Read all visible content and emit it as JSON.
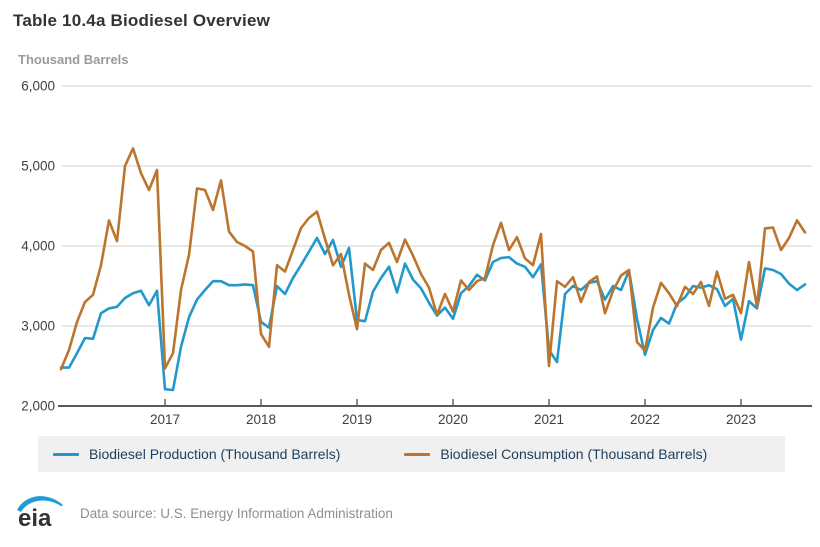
{
  "header": {
    "title": "Table 10.4a Biodiesel Overview",
    "unit_label": "Thousand Barrels"
  },
  "chart_data": {
    "type": "line",
    "title": "Table 10.4a Biodiesel Overview",
    "ylabel": "Thousand Barrels",
    "xlabel": "",
    "frequency": "monthly",
    "x_start": "2015-12",
    "x_end": "2023-09",
    "ylim": [
      2000,
      6000
    ],
    "ytick_step": 1000,
    "grid": "horizontal",
    "legend_position": "bottom",
    "year_ticks": [
      "2017",
      "2018",
      "2019",
      "2020",
      "2021",
      "2022",
      "2023"
    ],
    "series": [
      {
        "name": "Biodiesel Production (Thousand Barrels)",
        "color": "#2398cb",
        "values": [
          2480,
          2480,
          2660,
          2850,
          2840,
          3160,
          3220,
          3240,
          3350,
          3410,
          3440,
          3260,
          3440,
          2210,
          2200,
          2740,
          3110,
          3330,
          3450,
          3560,
          3560,
          3510,
          3510,
          3520,
          3510,
          3050,
          2980,
          3500,
          3400,
          3600,
          3760,
          3930,
          4100,
          3900,
          4075,
          3740,
          3975,
          3075,
          3060,
          3430,
          3600,
          3740,
          3420,
          3780,
          3580,
          3470,
          3290,
          3130,
          3230,
          3090,
          3410,
          3500,
          3640,
          3570,
          3800,
          3850,
          3860,
          3780,
          3740,
          3610,
          3770,
          2700,
          2550,
          3400,
          3500,
          3450,
          3540,
          3560,
          3330,
          3500,
          3450,
          3690,
          3090,
          2640,
          2950,
          3100,
          3030,
          3280,
          3360,
          3500,
          3480,
          3510,
          3460,
          3250,
          3340,
          2830,
          3310,
          3220,
          3720,
          3700,
          3650,
          3530,
          3450,
          3520
        ]
      },
      {
        "name": "Biodiesel Consumption (Thousand Barrels)",
        "color": "#bb752e",
        "values": [
          2460,
          2700,
          3050,
          3300,
          3390,
          3760,
          4320,
          4060,
          5000,
          5220,
          4910,
          4700,
          4950,
          2470,
          2660,
          3450,
          3890,
          4720,
          4700,
          4450,
          4820,
          4180,
          4050,
          4000,
          3930,
          2900,
          2740,
          3760,
          3680,
          3950,
          4225,
          4350,
          4430,
          4090,
          3760,
          3900,
          3390,
          2960,
          3780,
          3700,
          3950,
          4040,
          3800,
          4080,
          3880,
          3650,
          3480,
          3140,
          3400,
          3180,
          3570,
          3450,
          3560,
          3600,
          4010,
          4290,
          3950,
          4110,
          3845,
          3760,
          4150,
          2500,
          3560,
          3490,
          3610,
          3300,
          3550,
          3620,
          3160,
          3440,
          3630,
          3700,
          2800,
          2690,
          3230,
          3540,
          3410,
          3250,
          3490,
          3400,
          3550,
          3250,
          3680,
          3340,
          3390,
          3160,
          3800,
          3240,
          4220,
          4230,
          3950,
          4100,
          4320,
          4170
        ]
      }
    ],
    "style": {
      "gridline_color": "#d9d9d9",
      "axis_color": "#595959",
      "tick_label_color": "#404040",
      "line_width": 2.6
    }
  },
  "footer": {
    "logo_text": "eia",
    "source_text": "Data source: U.S. Energy Information Administration"
  }
}
